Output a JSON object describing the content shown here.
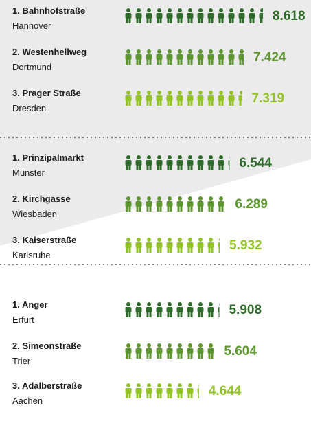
{
  "chart_data": {
    "type": "pictogram",
    "categories": [
      "1. Bahnhofstraße",
      "2. Westenhellweg",
      "3. Prager Straße",
      "1. Prinzipalmarkt",
      "2. Kirchgasse",
      "3. Kaiserstraße",
      "1. Anger",
      "2. Simeonstraße",
      "3. Adalberstraße"
    ],
    "cities": [
      "Hannover",
      "Dortmund",
      "Dresden",
      "Münster",
      "Wiesbaden",
      "Karlsruhe",
      "Erfurt",
      "Trier",
      "Aachen"
    ],
    "values": [
      8618,
      7424,
      7319,
      6544,
      6289,
      5932,
      5908,
      5604,
      4644
    ],
    "value_labels": [
      "8.618",
      "7.424",
      "7.319",
      "6.544",
      "6.289",
      "5.932",
      "5.908",
      "5.604",
      "4.644"
    ],
    "colors": [
      "#2f6b2a",
      "#5e9630",
      "#93c425",
      "#2f6b2a",
      "#5e9630",
      "#93c425",
      "#2f6b2a",
      "#5e9630",
      "#93c425"
    ]
  }
}
